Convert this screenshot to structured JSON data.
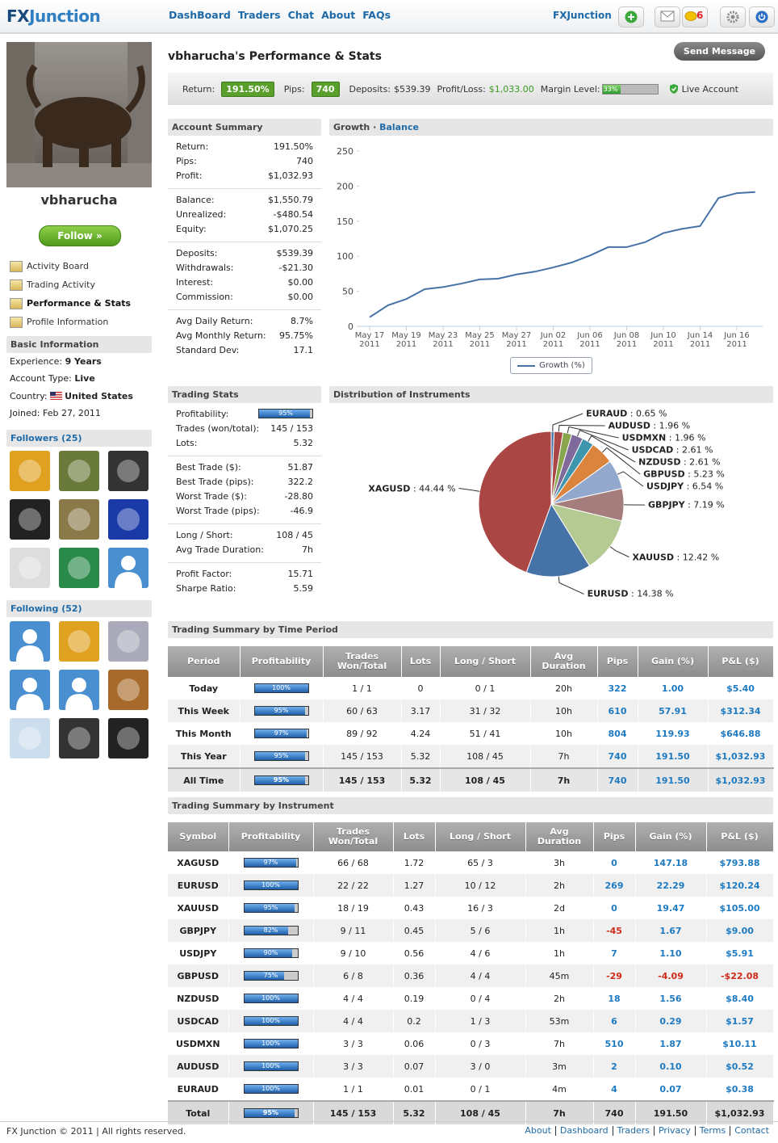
{
  "header": {
    "logo_fx": "FX",
    "logo_rest": "Junction",
    "nav": [
      "DashBoard",
      "Traders",
      "Chat",
      "About",
      "FAQs"
    ],
    "brand": "FXJunction",
    "message_count": "6"
  },
  "profile": {
    "username": "vbharucha",
    "follow": "Follow »",
    "menu": [
      "Activity Board",
      "Trading Activity",
      "Performance & Stats",
      "Profile Information"
    ],
    "basic_info": {
      "title": "Basic Information",
      "rows": [
        {
          "label": "Experience:",
          "value": "9 Years"
        },
        {
          "label": "Account Type:",
          "value": "Live"
        },
        {
          "label": "Country:",
          "value": "United States"
        },
        {
          "label": "Joined:",
          "value": "Feb 27, 2011"
        }
      ]
    },
    "followers": "Followers (25)",
    "following": "Following (52)"
  },
  "page": {
    "title": "vbharucha's Performance & Stats",
    "send_message": "Send Message",
    "stats": {
      "return_label": "Return:",
      "return": "191.50%",
      "pips_label": "Pips:",
      "pips": "740",
      "deposits_label": "Deposits:",
      "deposits": "$539.39",
      "profit_loss_label": "Profit/Loss:",
      "profit_loss": "$1,033.00",
      "margin_label": "Margin Level:",
      "margin": {
        "value": 33,
        "label": "33%"
      },
      "account": "Live Account"
    }
  },
  "account_summary": {
    "title": "Account Summary",
    "groups": [
      [
        [
          "Return:",
          "191.50%"
        ],
        [
          "Pips:",
          "740"
        ],
        [
          "Profit:",
          "$1,032.93"
        ]
      ],
      [
        [
          "Balance:",
          "$1,550.79"
        ],
        [
          "Unrealized:",
          "-$480.54"
        ],
        [
          "Equity:",
          "$1,070.25"
        ]
      ],
      [
        [
          "Deposits:",
          "$539.39"
        ],
        [
          "Withdrawals:",
          "-$21.30"
        ],
        [
          "Interest:",
          "$0.00"
        ],
        [
          "Commission:",
          "$0.00"
        ]
      ],
      [
        [
          "Avg Daily Return:",
          "8.7%"
        ],
        [
          "Avg Monthly Return:",
          "95.75%"
        ],
        [
          "Standard Dev:",
          "17.1"
        ]
      ]
    ]
  },
  "trading_stats": {
    "title": "Trading Stats",
    "groups": [
      [
        [
          "Profitability:",
          {
            "value": 95,
            "label": "95%"
          }
        ],
        [
          "Trades (won/total):",
          "145 / 153"
        ],
        [
          "Lots:",
          "5.32"
        ]
      ],
      [
        [
          "Best Trade ($):",
          "51.87"
        ],
        [
          "Best Trade (pips):",
          "322.2"
        ],
        [
          "Worst Trade ($):",
          "-28.80"
        ],
        [
          "Worst Trade (pips):",
          "-46.9"
        ]
      ],
      [
        [
          "Long / Short:",
          "108 / 45"
        ],
        [
          "Avg Trade Duration:",
          "7h"
        ]
      ],
      [
        [
          "Profit Factor:",
          "15.71"
        ],
        [
          "Sharpe Ratio:",
          "5.59"
        ]
      ]
    ]
  },
  "chart_data": [
    {
      "type": "line",
      "title": "Growth",
      "subtitle": "Balance",
      "categories": [
        "May 17\n2011",
        null,
        "May 19\n2011",
        null,
        "May 23\n2011",
        null,
        "May 25\n2011",
        null,
        "May 27\n2011",
        null,
        "Jun 02\n2011",
        null,
        "Jun 06\n2011",
        null,
        "Jun 08\n2011",
        null,
        "Jun 10\n2011",
        null,
        "Jun 14\n2011",
        null,
        "Jun 16\n2011",
        null
      ],
      "series": [
        {
          "name": "Growth (%)",
          "color": "#4572a7",
          "values": [
            13,
            30,
            39,
            53,
            56,
            61,
            67,
            68,
            74,
            78,
            84,
            91,
            101,
            113,
            113,
            120,
            133,
            139,
            143,
            183,
            190,
            191.5
          ]
        }
      ],
      "ylim": [
        0,
        250
      ],
      "yticks": [
        0,
        50,
        100,
        150,
        200,
        250
      ],
      "grid": false
    },
    {
      "type": "pie",
      "title": "Distribution of Instruments",
      "categories": [
        "EURAUD",
        "AUDUSD",
        "USDMXN",
        "USDCAD",
        "NZDUSD",
        "GBPUSD",
        "USDJPY",
        "GBPJPY",
        "XAUUSD",
        "EURUSD",
        "XAGUSD"
      ],
      "values": [
        0.65,
        1.96,
        1.96,
        2.61,
        2.61,
        5.23,
        6.54,
        7.19,
        12.42,
        14.38,
        44.44
      ],
      "value_labels": [
        "0.65 %",
        "1.96 %",
        "1.96 %",
        "2.61 %",
        "2.61 %",
        "5.23 %",
        "6.54 %",
        "7.19 %",
        "12.42 %",
        "14.38 %",
        "44.44 %"
      ],
      "colors": [
        "#4572a7",
        "#aa4643",
        "#89a54e",
        "#80699b",
        "#3d96ae",
        "#db843d",
        "#92a8cd",
        "#a47d7c",
        "#b5ca92",
        "#4572a7",
        "#aa4643"
      ]
    }
  ],
  "time_table": {
    "title": "Trading Summary by Time Period",
    "headers": [
      "Period",
      "Profitability",
      "Trades Won/Total",
      "Lots",
      "Long / Short",
      "Avg Duration",
      "Pips",
      "Gain (%)",
      "P&L ($)"
    ],
    "rows": [
      [
        "Today",
        {
          "value": 100,
          "label": "100%"
        },
        "1 / 1",
        "0",
        "0 / 1",
        "20h",
        "322",
        "1.00",
        "$5.40"
      ],
      [
        "This Week",
        {
          "value": 95,
          "label": "95%"
        },
        "60 / 63",
        "3.17",
        "31 / 32",
        "10h",
        "610",
        "57.91",
        "$312.34"
      ],
      [
        "This Month",
        {
          "value": 97,
          "label": "97%"
        },
        "89 / 92",
        "4.24",
        "51 / 41",
        "10h",
        "804",
        "119.93",
        "$646.88"
      ],
      [
        "This Year",
        {
          "value": 95,
          "label": "95%"
        },
        "145 / 153",
        "5.32",
        "108 / 45",
        "7h",
        "740",
        "191.50",
        "$1,032.93"
      ],
      [
        "All Time",
        {
          "value": 95,
          "label": "95%"
        },
        "145 / 153",
        "5.32",
        "108 / 45",
        "7h",
        "740",
        "191.50",
        "$1,032.93"
      ]
    ]
  },
  "instrument_table": {
    "title": "Trading Summary by Instrument",
    "headers": [
      "Symbol",
      "Profitability",
      "Trades Won/Total",
      "Lots",
      "Long / Short",
      "Avg Duration",
      "Pips",
      "Gain (%)",
      "P&L ($)"
    ],
    "rows": [
      [
        "XAGUSD",
        {
          "value": 97,
          "label": "97%"
        },
        "66 / 68",
        "1.72",
        "65 / 3",
        "3h",
        "0",
        "147.18",
        "$793.88"
      ],
      [
        "EURUSD",
        {
          "value": 100,
          "label": "100%"
        },
        "22 / 22",
        "1.27",
        "10 / 12",
        "2h",
        "269",
        "22.29",
        "$120.24"
      ],
      [
        "XAUUSD",
        {
          "value": 95,
          "label": "95%"
        },
        "18 / 19",
        "0.43",
        "16 / 3",
        "2d",
        "0",
        "19.47",
        "$105.00"
      ],
      [
        "GBPJPY",
        {
          "value": 82,
          "label": "82%"
        },
        "9 / 11",
        "0.45",
        "5 / 6",
        "1h",
        "-45",
        "1.67",
        "$9.00"
      ],
      [
        "USDJPY",
        {
          "value": 90,
          "label": "90%"
        },
        "9 / 10",
        "0.56",
        "4 / 6",
        "1h",
        "7",
        "1.10",
        "$5.91"
      ],
      [
        "GBPUSD",
        {
          "value": 75,
          "label": "75%"
        },
        "6 / 8",
        "0.36",
        "4 / 4",
        "45m",
        "-29",
        "-4.09",
        "-$22.08"
      ],
      [
        "NZDUSD",
        {
          "value": 100,
          "label": "100%"
        },
        "4 / 4",
        "0.19",
        "0 / 4",
        "2h",
        "18",
        "1.56",
        "$8.40"
      ],
      [
        "USDCAD",
        {
          "value": 100,
          "label": "100%"
        },
        "4 / 4",
        "0.2",
        "1 / 3",
        "53m",
        "6",
        "0.29",
        "$1.57"
      ],
      [
        "USDMXN",
        {
          "value": 100,
          "label": "100%"
        },
        "3 / 3",
        "0.06",
        "0 / 3",
        "7h",
        "510",
        "1.87",
        "$10.11"
      ],
      [
        "AUDUSD",
        {
          "value": 100,
          "label": "100%"
        },
        "3 / 3",
        "0.07",
        "3 / 0",
        "3m",
        "2",
        "0.10",
        "$0.52"
      ],
      [
        "EURAUD",
        {
          "value": 100,
          "label": "100%"
        },
        "1 / 1",
        "0.01",
        "0 / 1",
        "4m",
        "4",
        "0.07",
        "$0.38"
      ],
      [
        "Total",
        {
          "value": 95,
          "label": "95%"
        },
        "145 / 153",
        "5.32",
        "108 / 45",
        "7h",
        "740",
        "191.50",
        "$1,032.93"
      ]
    ]
  },
  "footer": {
    "copyright": "FX Junction © 2011 | All rights reserved.",
    "links": [
      "About",
      "Dashboard",
      "Traders",
      "Privacy",
      "Terms",
      "Contact"
    ]
  }
}
